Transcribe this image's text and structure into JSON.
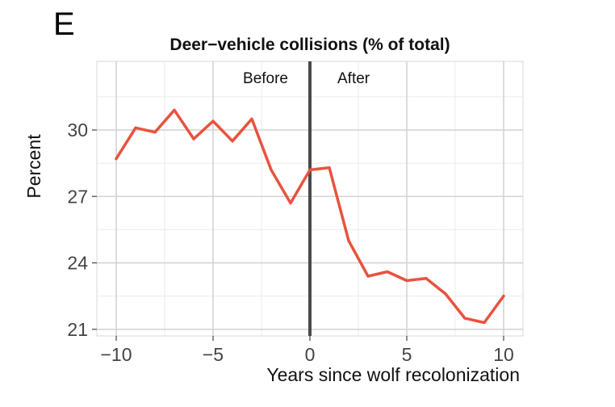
{
  "panel_label": "E",
  "chart_data": {
    "type": "line",
    "title": "Deer−vehicle collisions (% of total)",
    "xlabel": "Years since wolf recolonization",
    "ylabel": "Percent",
    "xlim": [
      -11,
      11
    ],
    "ylim": [
      20.7,
      33.1
    ],
    "x_ticks": [
      -10,
      -5,
      0,
      5,
      10
    ],
    "x_tick_labels": [
      "−10",
      "−5",
      "0",
      "5",
      "10"
    ],
    "y_ticks": [
      21,
      24,
      27,
      30
    ],
    "y_tick_labels": [
      "21",
      "24",
      "27",
      "30"
    ],
    "grid": true,
    "vertical_line": {
      "x": 0,
      "color": "#4a4a4a"
    },
    "annotations": [
      {
        "text": "Before",
        "side": "left"
      },
      {
        "text": "After",
        "side": "right"
      }
    ],
    "series": [
      {
        "color": "#e8533f",
        "x": [
          -10,
          -9,
          -8,
          -7,
          -6,
          -5,
          -4,
          -3,
          -2,
          -1,
          0,
          1,
          2,
          3,
          4,
          5,
          6,
          7,
          8,
          9,
          10
        ],
        "y": [
          28.7,
          30.1,
          29.9,
          30.9,
          29.6,
          30.4,
          29.5,
          30.5,
          28.2,
          26.7,
          28.2,
          28.3,
          25.0,
          23.4,
          23.6,
          23.2,
          23.3,
          22.6,
          21.5,
          21.3,
          22.5
        ]
      }
    ]
  }
}
